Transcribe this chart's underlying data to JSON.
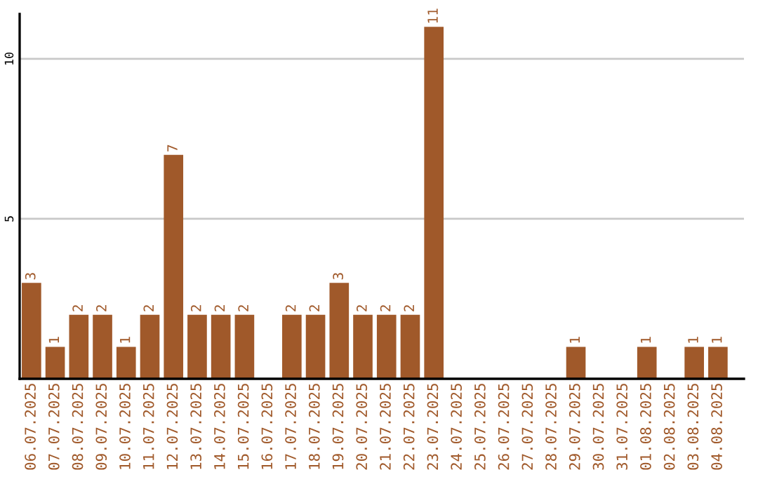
{
  "chart_data": {
    "type": "bar",
    "categories": [
      "06.07.2025",
      "07.07.2025",
      "08.07.2025",
      "09.07.2025",
      "10.07.2025",
      "11.07.2025",
      "12.07.2025",
      "13.07.2025",
      "14.07.2025",
      "15.07.2025",
      "16.07.2025",
      "17.07.2025",
      "18.07.2025",
      "19.07.2025",
      "20.07.2025",
      "21.07.2025",
      "22.07.2025",
      "23.07.2025",
      "24.07.2025",
      "25.07.2025",
      "26.07.2025",
      "27.07.2025",
      "28.07.2025",
      "29.07.2025",
      "30.07.2025",
      "31.07.2025",
      "01.08.2025",
      "02.08.2025",
      "03.08.2025",
      "04.08.2025"
    ],
    "values": [
      3,
      1,
      2,
      2,
      1,
      2,
      7,
      2,
      2,
      2,
      null,
      2,
      2,
      3,
      2,
      2,
      2,
      11,
      null,
      null,
      null,
      null,
      null,
      1,
      null,
      null,
      1,
      null,
      1,
      1
    ],
    "color": "#a0592a",
    "ylim": [
      0,
      11.4
    ],
    "yticks": [
      5,
      10
    ],
    "grid": "y",
    "data_labels": true
  }
}
